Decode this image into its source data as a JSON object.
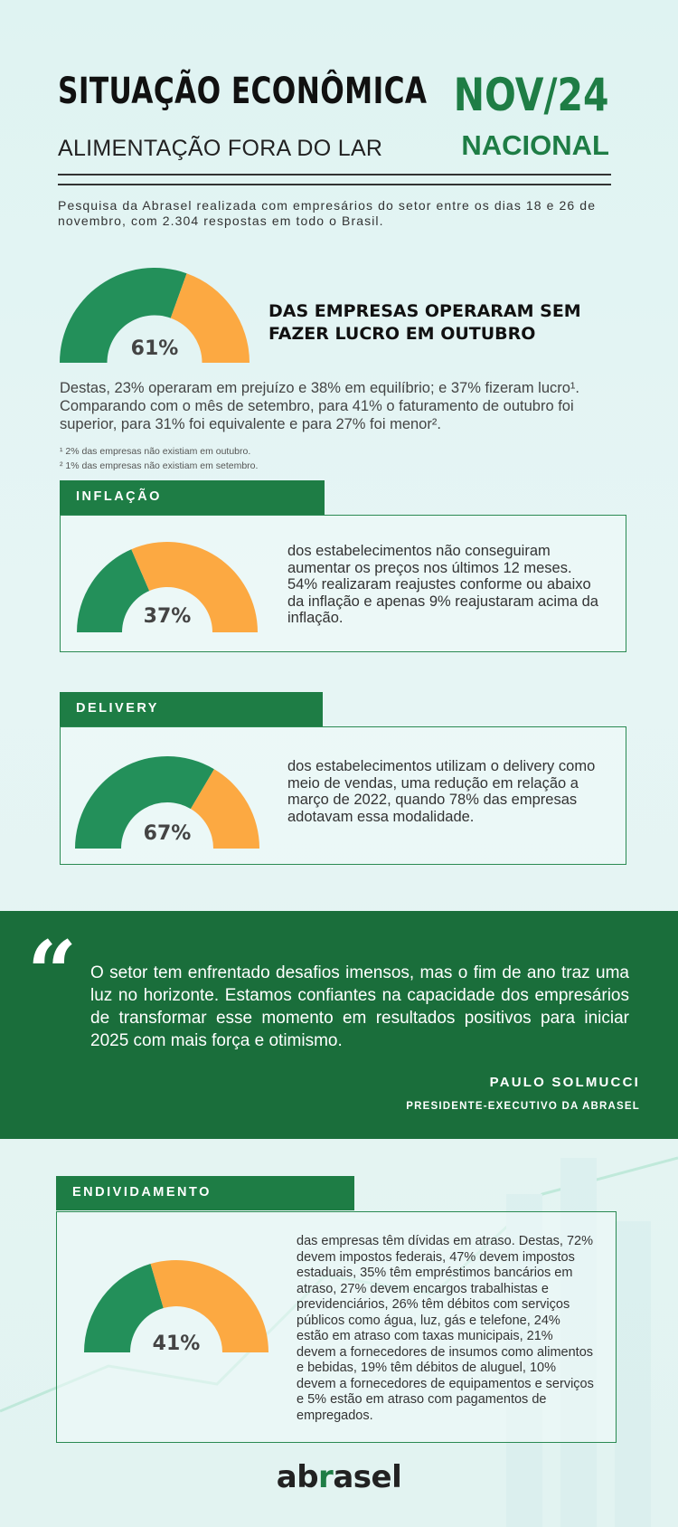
{
  "header": {
    "title": "SITUAÇÃO ECONÔMICA",
    "subtitle": "ALIMENTAÇÃO FORA DO LAR",
    "period": "NOV/24",
    "scope": "NACIONAL"
  },
  "intro": "Pesquisa da Abrasel realizada com empresários do setor entre os dias 18 e 26 de novembro, com 2.304 respostas em todo o Brasil.",
  "colors": {
    "green": "#1e7d45",
    "dark_green": "#1a6e3b",
    "orange": "#fca942",
    "gauge_green": "#23905a"
  },
  "profit": {
    "value": 61,
    "value_label": "61%",
    "headline": "DAS EMPRESAS OPERARAM SEM FAZER LUCRO EM OUTUBRO",
    "paragraph": "Destas, 23% operaram em prejuízo e 38% em equilíbrio; e 37% fizeram lucro¹. Comparando com o mês de setembro, para 41% o faturamento de outubro foi superior, para 31% foi equivalente e para 27% foi menor².",
    "footnote_1": "¹ 2% das empresas não existiam em outubro.",
    "footnote_2": "² 1% das empresas não existiam em setembro."
  },
  "inflation": {
    "label": "INFLAÇÃO",
    "value": 37,
    "value_label": "37%",
    "text": "dos estabelecimentos não conseguiram aumentar os preços nos últimos 12 meses. 54% realizaram reajustes conforme ou abaixo da inflação e apenas 9% reajustaram acima da inflação."
  },
  "delivery": {
    "label": "DELIVERY",
    "value": 67,
    "value_label": "67%",
    "text": "dos estabelecimentos utilizam o delivery como meio de vendas, uma redução em relação a março de 2022, quando 78% das empresas adotavam essa modalidade."
  },
  "quote": {
    "mark": "“",
    "text": "O setor tem enfrentado desafios imensos, mas o fim de ano traz uma luz no horizonte. Estamos confiantes na capacidade dos empresários de transformar esse momento em resultados positivos para iniciar 2025 com mais força e otimismo.",
    "author": "PAULO SOLMUCCI",
    "role": "PRESIDENTE-EXECUTIVO DA ABRASEL"
  },
  "debt": {
    "label": "ENDIVIDAMENTO",
    "value": 41,
    "value_label": "41%",
    "text": "das empresas têm dívidas em atraso. Destas, 72% devem impostos federais, 47% devem impostos estaduais, 35% têm empréstimos bancários em atraso, 27% devem encargos trabalhistas e previdenciários, 26% têm débitos com serviços públicos como água, luz, gás e telefone, 24% estão em atraso com taxas municipais, 21% devem a fornecedores de insumos como alimentos e bebidas, 19% têm débitos de aluguel, 10% devem a fornecedores de equipamentos e serviços e 5% estão em atraso com pagamentos de empregados."
  },
  "logo": {
    "part1": "ab",
    "part2": "r",
    "part3": "asel"
  }
}
